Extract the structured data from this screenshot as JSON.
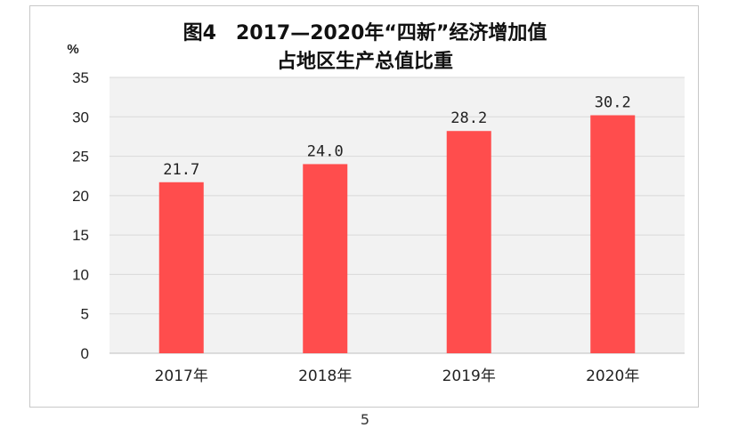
{
  "chart_data": {
    "type": "bar",
    "title": "图4 2017—2020年“四新”经济增加值",
    "title_line1": "图4　2017—2020年“四新”经济增加值",
    "title_line2": "占地区生产总值比重",
    "ylabel": "%",
    "xlabel": "",
    "categories": [
      "2017年",
      "2018年",
      "2019年",
      "2020年"
    ],
    "values": [
      21.7,
      24.0,
      28.2,
      30.2
    ],
    "value_labels": [
      "21.7",
      "24.0",
      "28.2",
      "30.2"
    ],
    "ylim": [
      0,
      35
    ],
    "yticks": [
      "0",
      "5",
      "10",
      "15",
      "20",
      "25",
      "30",
      "35"
    ],
    "grid": true,
    "bar_color": "#ff4d4d",
    "plot_bg": "#f2f2f2",
    "grid_color": "#d9d9d9"
  },
  "page": {
    "page_number": "5"
  }
}
